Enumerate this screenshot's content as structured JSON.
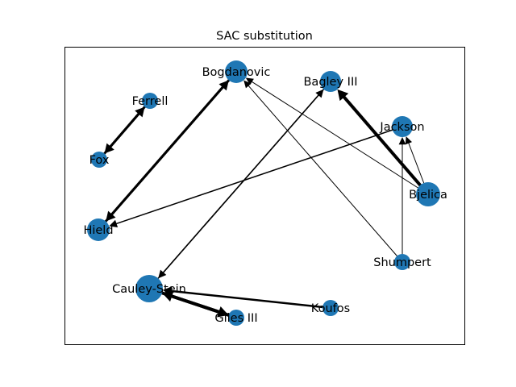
{
  "title": "SAC substitution",
  "colors": {
    "node": "#1f77b4",
    "edge": "#000000",
    "frame": "#000000",
    "background": "#ffffff"
  },
  "nodes": [
    {
      "id": "bogdanovic",
      "label": "Bogdanovic"
    },
    {
      "id": "bagley",
      "label": "Bagley III"
    },
    {
      "id": "ferrell",
      "label": "Ferrell"
    },
    {
      "id": "jackson",
      "label": "Jackson"
    },
    {
      "id": "fox",
      "label": "Fox"
    },
    {
      "id": "bjelica",
      "label": "Bjelica"
    },
    {
      "id": "hield",
      "label": "Hield"
    },
    {
      "id": "shumpert",
      "label": "Shumpert"
    },
    {
      "id": "cauley",
      "label": "Cauley-Stein"
    },
    {
      "id": "koufos",
      "label": "Koufos"
    },
    {
      "id": "giles",
      "label": "Giles III"
    }
  ],
  "edges": [
    {
      "from": "fox",
      "to": "ferrell",
      "weight": 3
    },
    {
      "from": "ferrell",
      "to": "fox",
      "weight": 3
    },
    {
      "from": "hield",
      "to": "bogdanovic",
      "weight": 3
    },
    {
      "from": "bogdanovic",
      "to": "hield",
      "weight": 3
    },
    {
      "from": "bjelica",
      "to": "bagley",
      "weight": 4
    },
    {
      "from": "bjelica",
      "to": "bogdanovic",
      "weight": 1
    },
    {
      "from": "bjelica",
      "to": "jackson",
      "weight": 1
    },
    {
      "from": "shumpert",
      "to": "bogdanovic",
      "weight": 1
    },
    {
      "from": "shumpert",
      "to": "jackson",
      "weight": 1
    },
    {
      "from": "jackson",
      "to": "hield",
      "weight": 1.5
    },
    {
      "from": "cauley",
      "to": "bagley",
      "weight": 1.5
    },
    {
      "from": "bagley",
      "to": "cauley",
      "weight": 1.5
    },
    {
      "from": "koufos",
      "to": "cauley",
      "weight": 2.5
    },
    {
      "from": "cauley",
      "to": "giles",
      "weight": 4
    },
    {
      "from": "giles",
      "to": "cauley",
      "weight": 4
    }
  ]
}
